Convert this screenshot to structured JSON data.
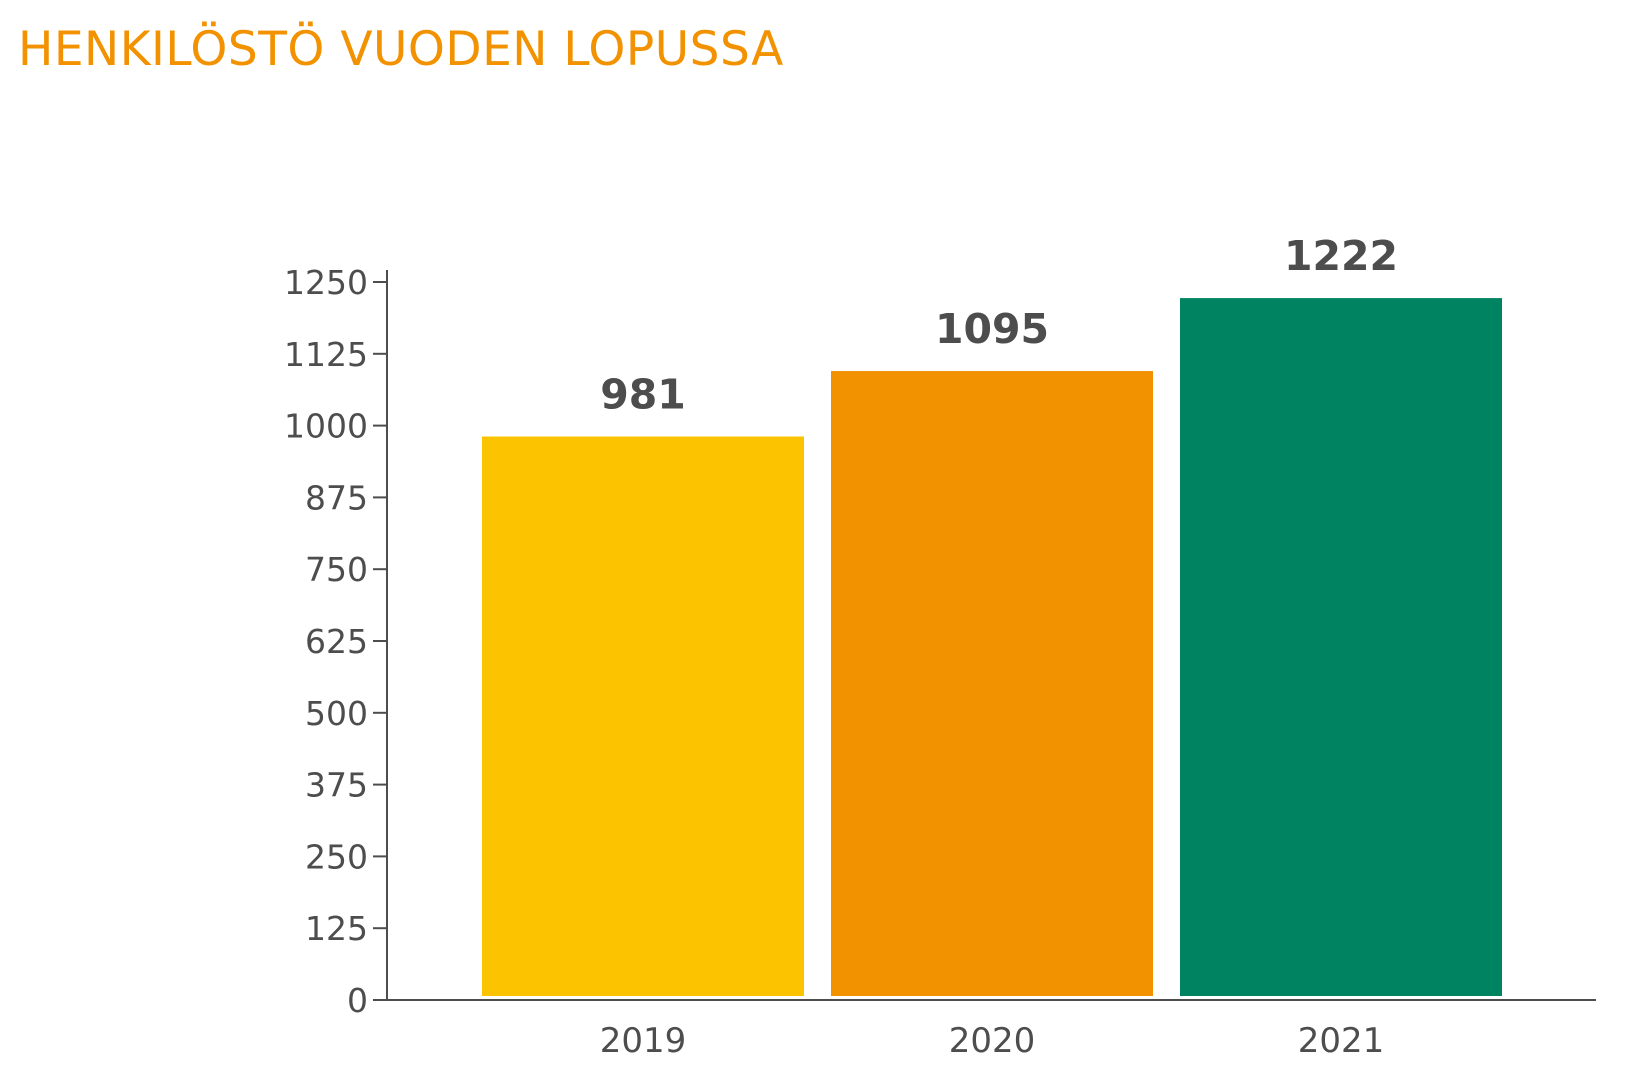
{
  "chart_data": {
    "type": "bar",
    "title": "HENKILÖSTÖ VUODEN LOPUSSA",
    "categories": [
      "2019",
      "2020",
      "2021"
    ],
    "values": [
      981,
      1095,
      1222
    ],
    "data_labels": [
      "981",
      "1095",
      "1222"
    ],
    "xlabel": "",
    "ylabel": "",
    "ylim": [
      0,
      1250
    ],
    "yticks": [
      0,
      125,
      250,
      375,
      500,
      625,
      750,
      875,
      1000,
      1125,
      1250
    ],
    "grid": false,
    "legend": "none",
    "bar_colors": [
      "#fbc300",
      "#f39200",
      "#008361"
    ]
  },
  "colors": {
    "title": "#f39200",
    "axis": "#4d4d4d",
    "text": "#4d4d4d"
  }
}
